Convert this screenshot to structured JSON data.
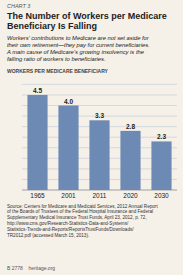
{
  "chart_data": {
    "type": "bar",
    "title": "The Number of Workers per Medicare\nBeneficiary Is Falling",
    "subtitle": "Workers’ contributions to Medicare are not set aside for\ntheir own retirement—they pay for current beneficiaries.\nA main cause of Medicare’s growing insolvency is the\nfalling ratio of workers to beneficiaries.",
    "y_label": "WORKERS PER MEDICARE BENEFICIARY",
    "annotations": [
      "CHART 3",
      "Source: Centers for Medicare and Medicaid Services, 2012 Annual Report\nof the Boards of Trustees of the Federal Hospital Insurance and Federal\nSupplementary Medical Insurance Trust Funds, April 23, 2012, p. 72,\nhttp://www.cms.gov/Research-Statistics-Data-and-Systems/\nStatistics-Trends-and-Reports/ReportsTrustFunds/Downloads/\nTR2012.pdf (accessed March 15, 2013).",
      "B 2778    heritage.org"
    ],
    "categories": [
      "1965",
      "2001",
      "2011",
      "2020",
      "2030"
    ],
    "values": [
      4.5,
      4.0,
      3.3,
      2.8,
      2.3
    ],
    "value_labels": [
      "4.5",
      "4.0",
      "3.3",
      "2.8",
      "2.3"
    ],
    "color": "#6d8ab5",
    "ylim": [
      0,
      5.0
    ],
    "yticks": [
      0,
      0.5,
      1,
      1.5,
      2,
      2.5,
      3,
      3.5,
      4,
      4.5,
      5
    ],
    "grid": true,
    "data_labels": true,
    "tick_labels": "x"
  }
}
